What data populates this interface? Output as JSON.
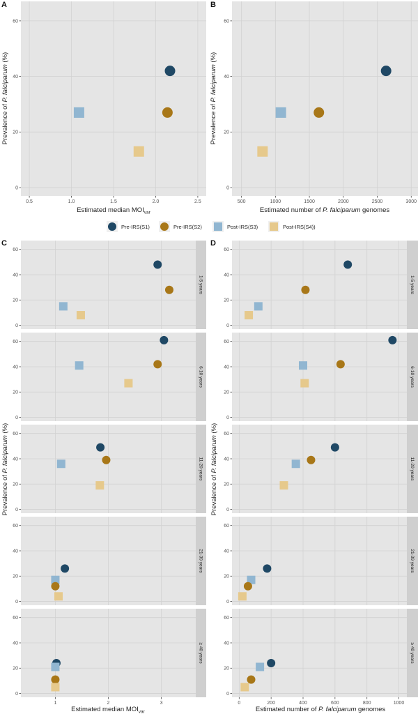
{
  "legend": {
    "entries": [
      {
        "key": "S1",
        "label": "Pre-IRS(S1)",
        "shape": "circle",
        "color": "#1f4865"
      },
      {
        "key": "S2",
        "label": "Pre-IRS(S2)",
        "shape": "circle",
        "color": "#a87718"
      },
      {
        "key": "S3",
        "label": "Post-IRS(S3)",
        "shape": "square",
        "color": "#91b6d1"
      },
      {
        "key": "S4",
        "label": "Post-IRS(S4))",
        "shape": "square",
        "color": "#e6c98c"
      }
    ],
    "placement": "center-middle"
  },
  "chart_data": [
    {
      "panel": "A",
      "type": "scatter",
      "title": "",
      "xlabel": "Estimated median MOI",
      "xlabel_subscript": "var",
      "ylabel_prefix": "Prevalence of ",
      "ylabel_italic": "P. falciparum",
      "ylabel_suffix": " (%)",
      "xlim": [
        0.4,
        2.6
      ],
      "ylim": [
        -3,
        67
      ],
      "xticks": [
        0.5,
        1.0,
        1.5,
        2.0,
        2.5
      ],
      "xtick_labels": [
        "0.5",
        "1.0",
        "1.5",
        "2.0",
        "2.5"
      ],
      "yticks": [
        0,
        20,
        40,
        60
      ],
      "ytick_labels": [
        "0",
        "20",
        "40",
        "60"
      ],
      "grid": true,
      "points": [
        {
          "series": "S1",
          "x": 2.17,
          "y": 42
        },
        {
          "series": "S2",
          "x": 2.14,
          "y": 27
        },
        {
          "series": "S3",
          "x": 1.09,
          "y": 27
        },
        {
          "series": "S4",
          "x": 1.8,
          "y": 13
        }
      ]
    },
    {
      "panel": "B",
      "type": "scatter",
      "title": "",
      "xlabel_prefix": "Estimated number of ",
      "xlabel_italic": "P. falciparum",
      "xlabel_suffix": " genomes",
      "ylabel_prefix": "Prevalence of ",
      "ylabel_italic": "P. falciparum",
      "ylabel_suffix": " (%)",
      "xlim": [
        360,
        3100
      ],
      "ylim": [
        -3,
        67
      ],
      "xticks": [
        500,
        1000,
        1500,
        2000,
        2500,
        3000
      ],
      "xtick_labels": [
        "500",
        "1000",
        "1500",
        "2000",
        "2500",
        "3000"
      ],
      "yticks": [
        0,
        20,
        40,
        60
      ],
      "ytick_labels": [
        "0",
        "20",
        "40",
        "60"
      ],
      "grid": true,
      "points": [
        {
          "series": "S1",
          "x": 2630,
          "y": 42
        },
        {
          "series": "S2",
          "x": 1640,
          "y": 27
        },
        {
          "series": "S3",
          "x": 1080,
          "y": 27
        },
        {
          "series": "S4",
          "x": 810,
          "y": 13
        }
      ]
    },
    {
      "panel": "C",
      "type": "scatter",
      "faceted": true,
      "xlabel": "Estimated median MOI",
      "xlabel_subscript": "var",
      "ylabel_prefix": "Prevalence of ",
      "ylabel_italic": "P. falciparum",
      "ylabel_suffix": " (%)",
      "xlim": [
        0.35,
        3.65
      ],
      "ylim": [
        -3,
        67
      ],
      "xticks": [
        1,
        2,
        3
      ],
      "xtick_labels": [
        "1",
        "2",
        "3"
      ],
      "yticks": [
        0,
        20,
        40,
        60
      ],
      "ytick_labels": [
        "0",
        "20",
        "40",
        "60"
      ],
      "grid": true,
      "facets": [
        {
          "label": "1-5 years",
          "points": [
            {
              "series": "S1",
              "x": 2.93,
              "y": 48
            },
            {
              "series": "S2",
              "x": 3.15,
              "y": 28
            },
            {
              "series": "S3",
              "x": 1.15,
              "y": 15
            },
            {
              "series": "S4",
              "x": 1.48,
              "y": 8
            }
          ]
        },
        {
          "label": "6-10 years",
          "points": [
            {
              "series": "S1",
              "x": 3.05,
              "y": 61
            },
            {
              "series": "S2",
              "x": 2.93,
              "y": 42
            },
            {
              "series": "S3",
              "x": 1.45,
              "y": 41
            },
            {
              "series": "S4",
              "x": 2.38,
              "y": 27
            }
          ]
        },
        {
          "label": "11-20 years",
          "points": [
            {
              "series": "S1",
              "x": 1.85,
              "y": 49
            },
            {
              "series": "S2",
              "x": 1.96,
              "y": 39
            },
            {
              "series": "S3",
              "x": 1.11,
              "y": 36
            },
            {
              "series": "S4",
              "x": 1.84,
              "y": 19
            }
          ]
        },
        {
          "label": "21-39 years",
          "points": [
            {
              "series": "S1",
              "x": 1.18,
              "y": 26
            },
            {
              "series": "S3",
              "x": 1.0,
              "y": 17
            },
            {
              "series": "S2",
              "x": 1.0,
              "y": 12
            },
            {
              "series": "S4",
              "x": 1.06,
              "y": 4
            }
          ]
        },
        {
          "label": "≥ 40 years",
          "points": [
            {
              "series": "S1",
              "x": 1.02,
              "y": 24
            },
            {
              "series": "S3",
              "x": 1.0,
              "y": 21
            },
            {
              "series": "S2",
              "x": 1.0,
              "y": 11
            },
            {
              "series": "S4",
              "x": 1.0,
              "y": 5
            }
          ]
        }
      ]
    },
    {
      "panel": "D",
      "type": "scatter",
      "faceted": true,
      "xlabel_prefix": "Estimated number of ",
      "xlabel_italic": "P. falciparum",
      "xlabel_suffix": " genomes",
      "ylabel_prefix": "Prevalence of ",
      "ylabel_italic": "P. falciparum",
      "ylabel_suffix": " (%)",
      "xlim": [
        -45,
        1050
      ],
      "ylim": [
        -3,
        67
      ],
      "xticks": [
        0,
        200,
        400,
        600,
        800,
        1000
      ],
      "xtick_labels": [
        "0",
        "200",
        "400",
        "600",
        "800",
        "1000"
      ],
      "yticks": [
        0,
        20,
        40,
        60
      ],
      "ytick_labels": [
        "0",
        "20",
        "40",
        "60"
      ],
      "grid": true,
      "facets": [
        {
          "label": "1-5 years",
          "points": [
            {
              "series": "S1",
              "x": 680,
              "y": 48
            },
            {
              "series": "S2",
              "x": 415,
              "y": 28
            },
            {
              "series": "S3",
              "x": 120,
              "y": 15
            },
            {
              "series": "S4",
              "x": 60,
              "y": 8
            }
          ]
        },
        {
          "label": "6-10 years",
          "points": [
            {
              "series": "S1",
              "x": 960,
              "y": 61
            },
            {
              "series": "S2",
              "x": 635,
              "y": 42
            },
            {
              "series": "S3",
              "x": 400,
              "y": 41
            },
            {
              "series": "S4",
              "x": 410,
              "y": 27
            }
          ]
        },
        {
          "label": "11-20 years",
          "points": [
            {
              "series": "S1",
              "x": 600,
              "y": 49
            },
            {
              "series": "S2",
              "x": 450,
              "y": 39
            },
            {
              "series": "S3",
              "x": 355,
              "y": 36
            },
            {
              "series": "S4",
              "x": 280,
              "y": 19
            }
          ]
        },
        {
          "label": "21-39 years",
          "points": [
            {
              "series": "S1",
              "x": 175,
              "y": 26
            },
            {
              "series": "S3",
              "x": 75,
              "y": 17
            },
            {
              "series": "S2",
              "x": 55,
              "y": 12
            },
            {
              "series": "S4",
              "x": 20,
              "y": 4
            }
          ]
        },
        {
          "label": "≥ 40 years",
          "points": [
            {
              "series": "S1",
              "x": 200,
              "y": 24
            },
            {
              "series": "S3",
              "x": 130,
              "y": 21
            },
            {
              "series": "S2",
              "x": 75,
              "y": 11
            },
            {
              "series": "S4",
              "x": 35,
              "y": 5
            }
          ]
        }
      ]
    }
  ]
}
